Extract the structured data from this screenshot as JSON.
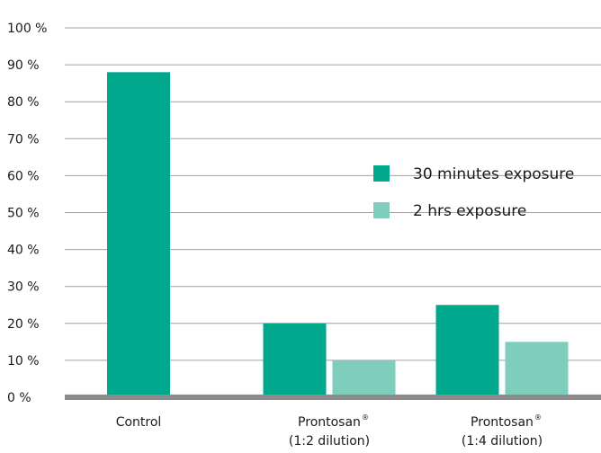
{
  "chart_data": {
    "type": "bar",
    "title": "",
    "xlabel": "",
    "ylabel": "",
    "ylim": [
      0,
      100
    ],
    "y_ticks": [
      "0 %",
      "10 %",
      "20 %",
      "30 %",
      "40 %",
      "50 %",
      "60 %",
      "70 %",
      "80 %",
      "90 %",
      "100 %"
    ],
    "grid": "horizontal",
    "legend_position": "right",
    "categories": [
      {
        "lines": [
          "Control"
        ],
        "superscript": ""
      },
      {
        "lines": [
          "Prontosan",
          "(1:2 dilution)"
        ],
        "superscript": "®"
      },
      {
        "lines": [
          "Prontosan",
          "(1:4 dilution)"
        ],
        "superscript": "®"
      }
    ],
    "series": [
      {
        "name": "30 minutes exposure",
        "color": "#00a88e",
        "values": [
          88,
          20,
          25
        ]
      },
      {
        "name": "2 hrs exposure",
        "color": "#7ecdbd",
        "values": [
          null,
          10,
          15
        ]
      }
    ],
    "colors": {
      "gridline": "#a0a0a0",
      "baseline": "#8c8c8c",
      "text": "#1a1a1a"
    }
  }
}
